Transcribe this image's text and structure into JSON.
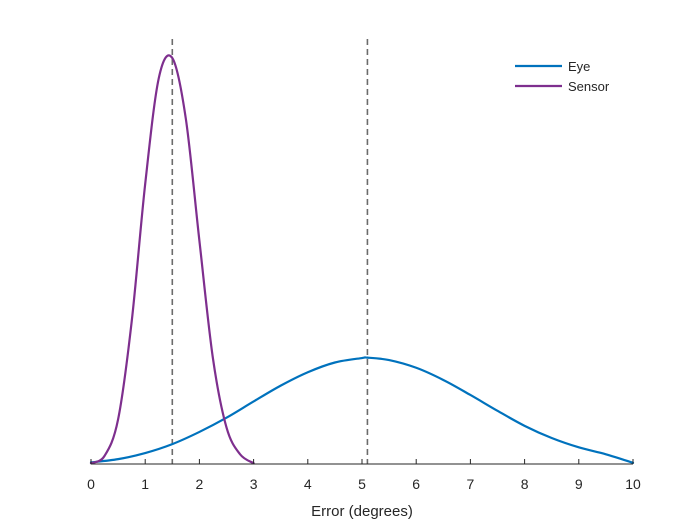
{
  "chart_data": {
    "type": "line",
    "title": "",
    "xlabel": "Error (degrees)",
    "ylabel": "",
    "xlim": [
      0,
      10
    ],
    "ylim": [
      0,
      1
    ],
    "xticks": [
      "0",
      "1",
      "2",
      "3",
      "4",
      "5",
      "6",
      "7",
      "8",
      "9",
      "10"
    ],
    "grid": false,
    "legend_position": "top-right",
    "series": [
      {
        "name": "Eye",
        "color": "#0072BD",
        "x": [
          0,
          0.5,
          1,
          1.5,
          2,
          2.5,
          3,
          3.5,
          4,
          4.5,
          5,
          5.1,
          5.5,
          6,
          6.5,
          7,
          7.5,
          8,
          8.5,
          9,
          9.5,
          10
        ],
        "y": [
          0.004,
          0.012,
          0.027,
          0.049,
          0.079,
          0.114,
          0.154,
          0.193,
          0.226,
          0.25,
          0.261,
          0.262,
          0.256,
          0.237,
          0.207,
          0.17,
          0.131,
          0.094,
          0.064,
          0.041,
          0.024,
          0.003
        ]
      },
      {
        "name": "Sensor",
        "color": "#7E2F8E",
        "x": [
          0,
          0.25,
          0.5,
          0.75,
          1,
          1.25,
          1.5,
          1.75,
          2,
          2.25,
          2.5,
          2.75,
          3
        ],
        "y": [
          0.002,
          0.02,
          0.11,
          0.35,
          0.69,
          0.95,
          1.0,
          0.85,
          0.55,
          0.26,
          0.09,
          0.024,
          0.002
        ]
      }
    ],
    "reference_lines": [
      {
        "axis": "x",
        "value": 1.5,
        "color": "#6b6b6b",
        "style": "dashed"
      },
      {
        "axis": "x",
        "value": 5.1,
        "color": "#6b6b6b",
        "style": "dashed"
      }
    ]
  }
}
